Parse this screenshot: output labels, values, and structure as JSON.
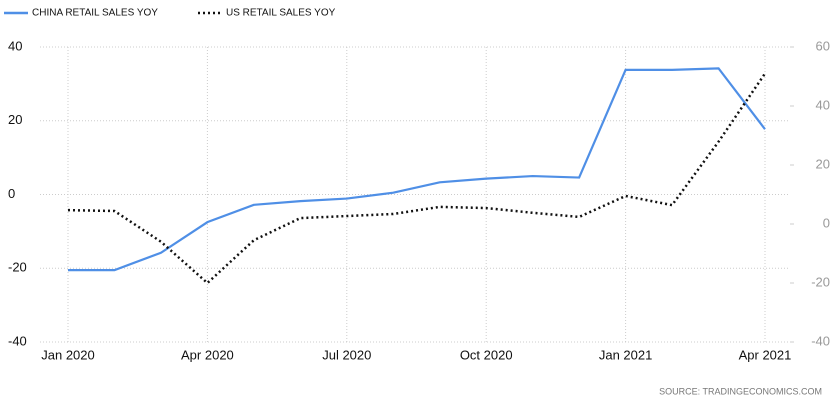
{
  "chart_data": {
    "type": "line",
    "source": "SOURCE:  TRADINGECONOMICS.COM",
    "categories": [
      "Jan 2020",
      null,
      null,
      "Apr 2020",
      null,
      null,
      "Jul 2020",
      null,
      null,
      "Oct 2020",
      null,
      null,
      "Jan 2021",
      null,
      null,
      "Apr 2021"
    ],
    "series": [
      {
        "name": "CHINA RETAIL SALES YOY",
        "color": "#4f8fe6",
        "style": "solid",
        "axis": "y",
        "values": [
          -20.5,
          -20.5,
          -15.8,
          -7.5,
          -2.8,
          -1.8,
          -1.1,
          0.5,
          3.3,
          4.3,
          5.0,
          4.6,
          33.8,
          33.8,
          34.2,
          17.7
        ]
      },
      {
        "name": "US RETAIL SALES YOY",
        "color": "#111111",
        "style": "dotted",
        "axis": "y2",
        "values": [
          4.7,
          4.4,
          -6,
          -20,
          -5.5,
          2,
          2.7,
          3.4,
          5.8,
          5.4,
          3.8,
          2.4,
          9.5,
          6.4,
          27.9,
          51
        ]
      }
    ],
    "ylim": [
      -40,
      40
    ],
    "yticks": [
      -40,
      -20,
      0,
      20,
      40
    ],
    "y2lim": [
      -40,
      60
    ],
    "y2ticks": [
      -40,
      -20,
      0,
      20,
      40,
      60
    ],
    "grid": true,
    "legend": "top-left"
  }
}
